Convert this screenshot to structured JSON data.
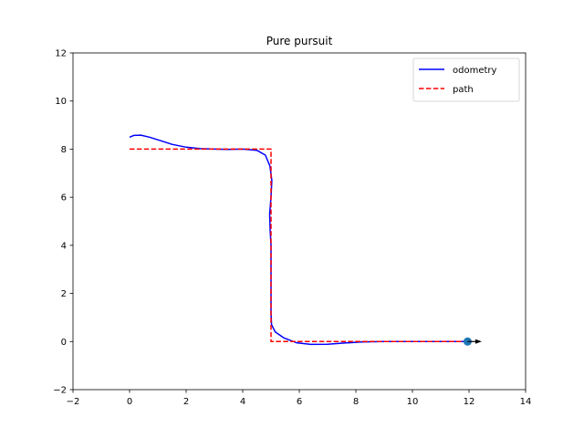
{
  "chart_data": {
    "type": "line",
    "title": "Pure pursuit",
    "xlabel": "",
    "ylabel": "",
    "xlim": [
      -2,
      14
    ],
    "ylim": [
      -2,
      12
    ],
    "xticks": [
      -2,
      0,
      2,
      4,
      6,
      8,
      10,
      12,
      14
    ],
    "yticks": [
      -2,
      0,
      2,
      4,
      6,
      8,
      10,
      12
    ],
    "grid": false,
    "legend_position": "top-right",
    "series": [
      {
        "name": "odometry",
        "style": "solid",
        "color": "#0000ff",
        "points": [
          [
            0.0,
            8.5
          ],
          [
            0.15,
            8.57
          ],
          [
            0.4,
            8.58
          ],
          [
            0.7,
            8.5
          ],
          [
            1.1,
            8.35
          ],
          [
            1.5,
            8.2
          ],
          [
            2.0,
            8.08
          ],
          [
            2.5,
            8.02
          ],
          [
            3.0,
            8.0
          ],
          [
            3.5,
            7.99
          ],
          [
            4.0,
            8.0
          ],
          [
            4.5,
            7.95
          ],
          [
            4.8,
            7.75
          ],
          [
            4.96,
            7.3
          ],
          [
            5.03,
            6.7
          ],
          [
            5.0,
            6.0
          ],
          [
            4.95,
            5.3
          ],
          [
            4.97,
            4.6
          ],
          [
            5.0,
            4.0
          ],
          [
            5.0,
            3.0
          ],
          [
            5.0,
            2.0
          ],
          [
            5.0,
            1.2
          ],
          [
            5.02,
            0.7
          ],
          [
            5.15,
            0.4
          ],
          [
            5.45,
            0.15
          ],
          [
            5.9,
            -0.05
          ],
          [
            6.4,
            -0.12
          ],
          [
            7.0,
            -0.11
          ],
          [
            7.6,
            -0.06
          ],
          [
            8.2,
            -0.02
          ],
          [
            9.0,
            0.0
          ],
          [
            10.0,
            0.0
          ],
          [
            11.0,
            0.0
          ],
          [
            11.95,
            0.0
          ]
        ]
      },
      {
        "name": "path",
        "style": "dashed",
        "color": "#ff0000",
        "points": [
          [
            0,
            8
          ],
          [
            5,
            8
          ],
          [
            5,
            0
          ],
          [
            12,
            0
          ]
        ]
      }
    ],
    "markers": [
      {
        "kind": "circle",
        "x": 11.95,
        "y": 0.0,
        "color": "#1f77b4"
      },
      {
        "kind": "arrow",
        "x": 11.95,
        "y": 0.0,
        "dx": 0.5,
        "dy": 0.0,
        "color": "#000000"
      }
    ]
  }
}
